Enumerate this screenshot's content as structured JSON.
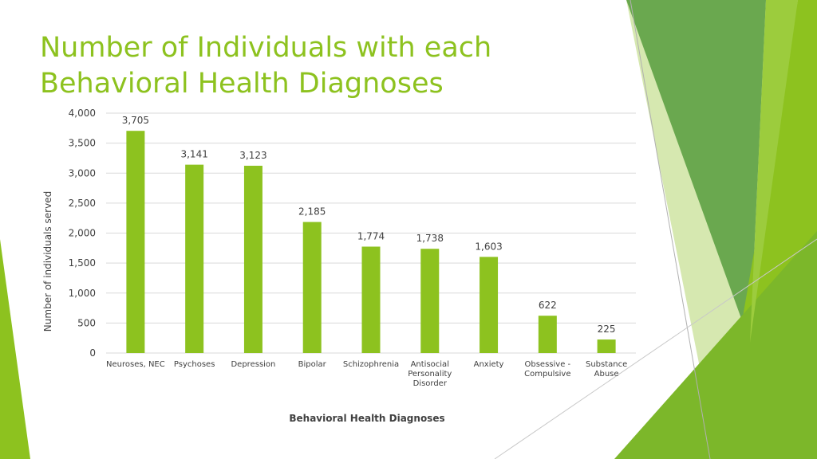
{
  "slide": {
    "title": "Number of Individuals with each Behavioral Health Diagnoses"
  },
  "colors": {
    "accent": "#8dc21f",
    "bar": "#8dc21f",
    "dark_green": "#5a9e2f",
    "gridline": "#d9d9d9",
    "text": "#404040"
  },
  "chart_data": {
    "type": "bar",
    "categories": [
      "Neuroses, NEC",
      "Psychoses",
      "Depression",
      "Bipolar",
      "Schizophrenia",
      "Antisocial Personality Disorder",
      "Anxiety",
      "Obsessive - Compulsive",
      "Substance Abuse"
    ],
    "category_lines": [
      [
        "Neuroses, NEC"
      ],
      [
        "Psychoses"
      ],
      [
        "Depression"
      ],
      [
        "Bipolar"
      ],
      [
        "Schizophrenia"
      ],
      [
        "Antisocial",
        "Personality",
        "Disorder"
      ],
      [
        "Anxiety"
      ],
      [
        "Obsessive -",
        "Compulsive"
      ],
      [
        "Substance",
        "Abuse"
      ]
    ],
    "values": [
      3705,
      3141,
      3123,
      2185,
      1774,
      1738,
      1603,
      622,
      225
    ],
    "data_labels": [
      "3,705",
      "3,141",
      "3,123",
      "2,185",
      "1,774",
      "1,738",
      "1,603",
      "622",
      "225"
    ],
    "title": "",
    "xlabel": "Behavioral Health Diagnoses",
    "ylabel": "Number of individuals served",
    "ylim": [
      0,
      4000
    ],
    "yticks": [
      0,
      500,
      1000,
      1500,
      2000,
      2500,
      3000,
      3500,
      4000
    ],
    "ytick_labels": [
      "0",
      "500",
      "1,000",
      "1,500",
      "2,000",
      "2,500",
      "3,000",
      "3,500",
      "4,000"
    ],
    "grid": true,
    "legend": "none"
  }
}
